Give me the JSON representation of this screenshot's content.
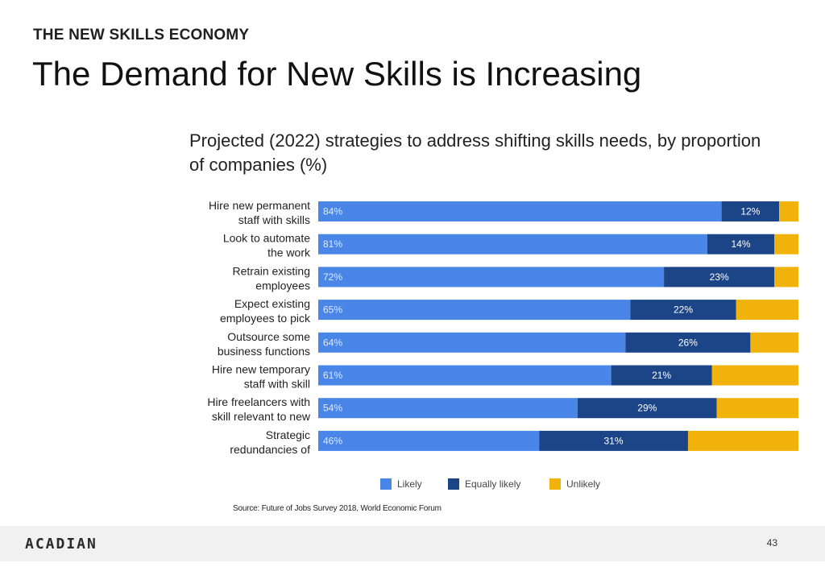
{
  "slide": {
    "eyebrow": "THE NEW SKILLS ECONOMY",
    "title": "The Demand for New Skills is Increasing",
    "source": "Source: Future of Jobs Survey 2018, World Economic Forum",
    "footer_logo": "ACADIAN",
    "page_number": "43"
  },
  "chart_data": {
    "type": "bar",
    "orientation": "horizontal",
    "stacked": true,
    "title": "Projected (2022) strategies to address shifting skills needs, by proportion of companies (%)",
    "categories": [
      [
        "Hire new permanent",
        "staff with skills"
      ],
      [
        "Look to automate",
        "the work"
      ],
      [
        "Retrain existing",
        "employees"
      ],
      [
        "Expect existing",
        "employees to pick"
      ],
      [
        "Outsource some",
        "business functions"
      ],
      [
        "Hire new temporary",
        "staff with skill"
      ],
      [
        "Hire freelancers with",
        "skill relevant to new"
      ],
      [
        "Strategic",
        "redundancies of"
      ]
    ],
    "series": [
      {
        "name": "Likely",
        "color": "#4a86e8",
        "values": [
          84,
          81,
          72,
          65,
          64,
          61,
          54,
          46
        ],
        "labels": [
          "84%",
          "81%",
          "72%",
          "65%",
          "64%",
          "61%",
          "54%",
          "46%"
        ]
      },
      {
        "name": "Equally likely",
        "color": "#1c4587",
        "values": [
          12,
          14,
          23,
          22,
          26,
          21,
          29,
          31
        ],
        "labels": [
          "12%",
          "14%",
          "23%",
          "22%",
          "26%",
          "21%",
          "29%",
          "31%"
        ]
      },
      {
        "name": "Unlikely",
        "color": "#f1b20b",
        "values": [
          4,
          5,
          5,
          13,
          10,
          18,
          17,
          23
        ]
      }
    ],
    "xlim": [
      0,
      100
    ],
    "grid": false,
    "legend": "bottom-center"
  }
}
